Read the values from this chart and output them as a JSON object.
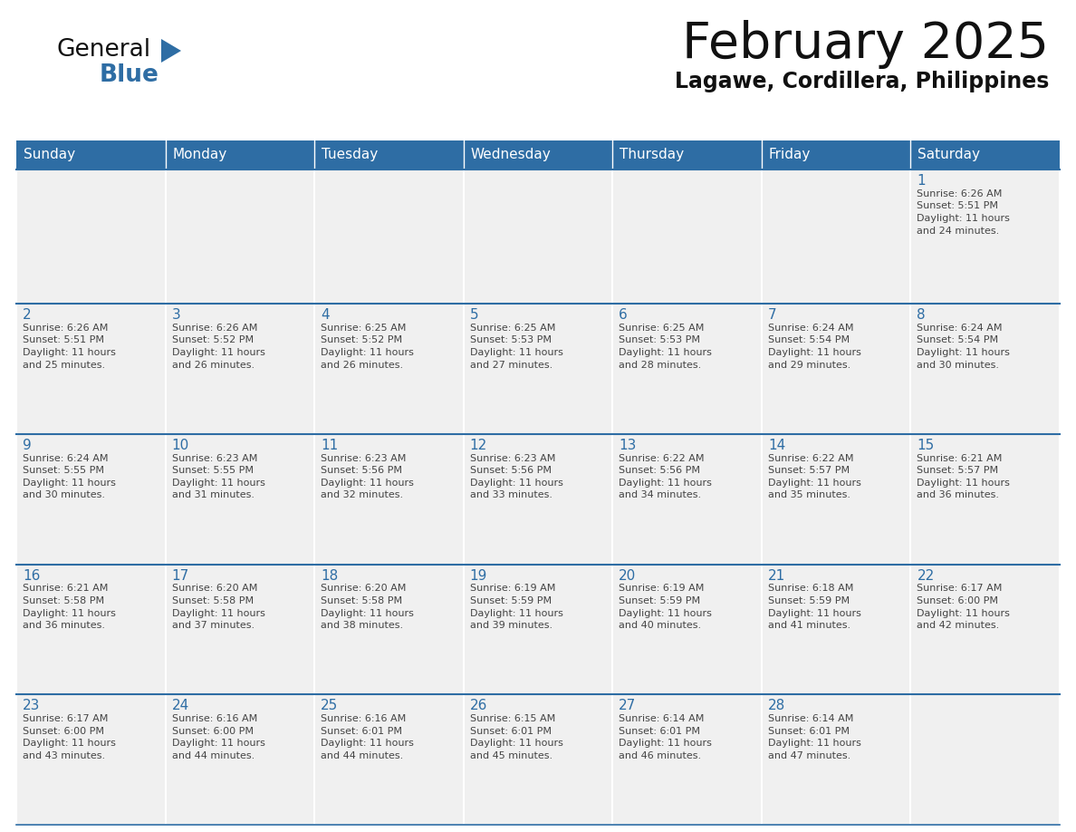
{
  "title": "February 2025",
  "subtitle": "Lagawe, Cordillera, Philippines",
  "days_of_week": [
    "Sunday",
    "Monday",
    "Tuesday",
    "Wednesday",
    "Thursday",
    "Friday",
    "Saturday"
  ],
  "header_bg": "#2E6DA4",
  "header_text": "#FFFFFF",
  "cell_bg": "#F0F0F0",
  "day_num_color": "#2E6DA4",
  "text_color": "#444444",
  "line_color": "#2E6DA4",
  "calendar_data": [
    [
      null,
      null,
      null,
      null,
      null,
      null,
      {
        "day": 1,
        "sunrise": "6:26 AM",
        "sunset": "5:51 PM",
        "daylight_l1": "11 hours",
        "daylight_l2": "and 24 minutes."
      }
    ],
    [
      {
        "day": 2,
        "sunrise": "6:26 AM",
        "sunset": "5:51 PM",
        "daylight_l1": "11 hours",
        "daylight_l2": "and 25 minutes."
      },
      {
        "day": 3,
        "sunrise": "6:26 AM",
        "sunset": "5:52 PM",
        "daylight_l1": "11 hours",
        "daylight_l2": "and 26 minutes."
      },
      {
        "day": 4,
        "sunrise": "6:25 AM",
        "sunset": "5:52 PM",
        "daylight_l1": "11 hours",
        "daylight_l2": "and 26 minutes."
      },
      {
        "day": 5,
        "sunrise": "6:25 AM",
        "sunset": "5:53 PM",
        "daylight_l1": "11 hours",
        "daylight_l2": "and 27 minutes."
      },
      {
        "day": 6,
        "sunrise": "6:25 AM",
        "sunset": "5:53 PM",
        "daylight_l1": "11 hours",
        "daylight_l2": "and 28 minutes."
      },
      {
        "day": 7,
        "sunrise": "6:24 AM",
        "sunset": "5:54 PM",
        "daylight_l1": "11 hours",
        "daylight_l2": "and 29 minutes."
      },
      {
        "day": 8,
        "sunrise": "6:24 AM",
        "sunset": "5:54 PM",
        "daylight_l1": "11 hours",
        "daylight_l2": "and 30 minutes."
      }
    ],
    [
      {
        "day": 9,
        "sunrise": "6:24 AM",
        "sunset": "5:55 PM",
        "daylight_l1": "11 hours",
        "daylight_l2": "and 30 minutes."
      },
      {
        "day": 10,
        "sunrise": "6:23 AM",
        "sunset": "5:55 PM",
        "daylight_l1": "11 hours",
        "daylight_l2": "and 31 minutes."
      },
      {
        "day": 11,
        "sunrise": "6:23 AM",
        "sunset": "5:56 PM",
        "daylight_l1": "11 hours",
        "daylight_l2": "and 32 minutes."
      },
      {
        "day": 12,
        "sunrise": "6:23 AM",
        "sunset": "5:56 PM",
        "daylight_l1": "11 hours",
        "daylight_l2": "and 33 minutes."
      },
      {
        "day": 13,
        "sunrise": "6:22 AM",
        "sunset": "5:56 PM",
        "daylight_l1": "11 hours",
        "daylight_l2": "and 34 minutes."
      },
      {
        "day": 14,
        "sunrise": "6:22 AM",
        "sunset": "5:57 PM",
        "daylight_l1": "11 hours",
        "daylight_l2": "and 35 minutes."
      },
      {
        "day": 15,
        "sunrise": "6:21 AM",
        "sunset": "5:57 PM",
        "daylight_l1": "11 hours",
        "daylight_l2": "and 36 minutes."
      }
    ],
    [
      {
        "day": 16,
        "sunrise": "6:21 AM",
        "sunset": "5:58 PM",
        "daylight_l1": "11 hours",
        "daylight_l2": "and 36 minutes."
      },
      {
        "day": 17,
        "sunrise": "6:20 AM",
        "sunset": "5:58 PM",
        "daylight_l1": "11 hours",
        "daylight_l2": "and 37 minutes."
      },
      {
        "day": 18,
        "sunrise": "6:20 AM",
        "sunset": "5:58 PM",
        "daylight_l1": "11 hours",
        "daylight_l2": "and 38 minutes."
      },
      {
        "day": 19,
        "sunrise": "6:19 AM",
        "sunset": "5:59 PM",
        "daylight_l1": "11 hours",
        "daylight_l2": "and 39 minutes."
      },
      {
        "day": 20,
        "sunrise": "6:19 AM",
        "sunset": "5:59 PM",
        "daylight_l1": "11 hours",
        "daylight_l2": "and 40 minutes."
      },
      {
        "day": 21,
        "sunrise": "6:18 AM",
        "sunset": "5:59 PM",
        "daylight_l1": "11 hours",
        "daylight_l2": "and 41 minutes."
      },
      {
        "day": 22,
        "sunrise": "6:17 AM",
        "sunset": "6:00 PM",
        "daylight_l1": "11 hours",
        "daylight_l2": "and 42 minutes."
      }
    ],
    [
      {
        "day": 23,
        "sunrise": "6:17 AM",
        "sunset": "6:00 PM",
        "daylight_l1": "11 hours",
        "daylight_l2": "and 43 minutes."
      },
      {
        "day": 24,
        "sunrise": "6:16 AM",
        "sunset": "6:00 PM",
        "daylight_l1": "11 hours",
        "daylight_l2": "and 44 minutes."
      },
      {
        "day": 25,
        "sunrise": "6:16 AM",
        "sunset": "6:01 PM",
        "daylight_l1": "11 hours",
        "daylight_l2": "and 44 minutes."
      },
      {
        "day": 26,
        "sunrise": "6:15 AM",
        "sunset": "6:01 PM",
        "daylight_l1": "11 hours",
        "daylight_l2": "and 45 minutes."
      },
      {
        "day": 27,
        "sunrise": "6:14 AM",
        "sunset": "6:01 PM",
        "daylight_l1": "11 hours",
        "daylight_l2": "and 46 minutes."
      },
      {
        "day": 28,
        "sunrise": "6:14 AM",
        "sunset": "6:01 PM",
        "daylight_l1": "11 hours",
        "daylight_l2": "and 47 minutes."
      },
      null
    ]
  ]
}
